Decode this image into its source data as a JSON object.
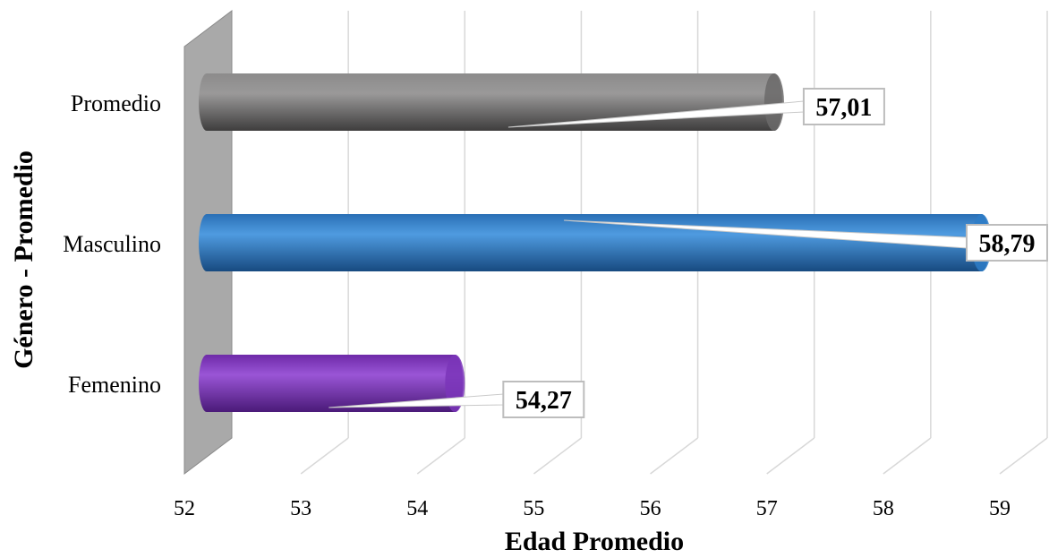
{
  "chart_data": {
    "type": "bar",
    "orientation": "horizontal",
    "style": "3d-cylinder",
    "categories": [
      "Promedio",
      "Masculino",
      "Femenino"
    ],
    "values": [
      57.01,
      58.79,
      54.27
    ],
    "data_labels": [
      "57,01",
      "58,79",
      "54,27"
    ],
    "bar_colors": [
      "#6b6a6a",
      "#2e7cc7",
      "#7a35b8"
    ],
    "xlabel": "Edad Promedio",
    "ylabel": "Género - Promedio",
    "xlim": [
      52,
      59
    ],
    "x_ticks": [
      "52",
      "53",
      "54",
      "55",
      "56",
      "57",
      "58",
      "59"
    ],
    "grid": true,
    "legend": "none"
  }
}
